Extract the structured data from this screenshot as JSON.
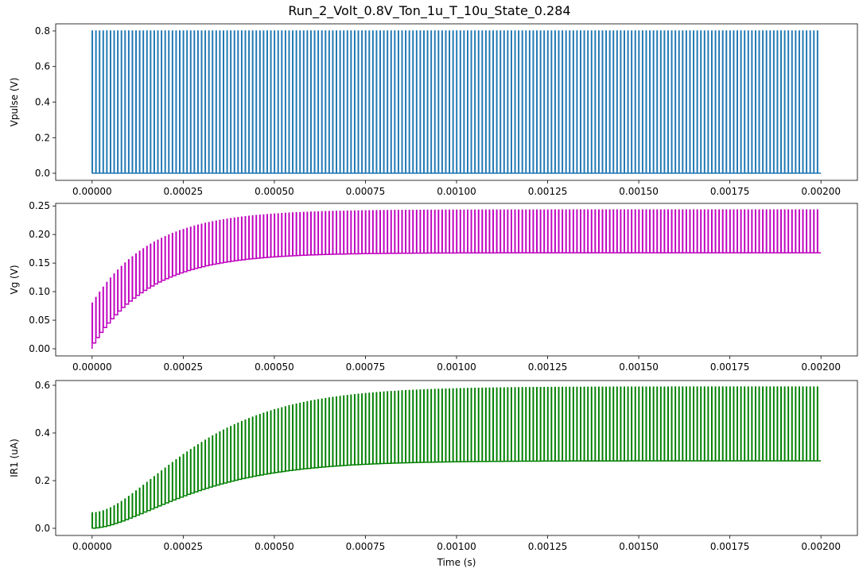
{
  "figure": {
    "title": "Run_2_Volt_0.8V_Ton_1u_T_10u_State_0.284"
  },
  "chart_data": [
    {
      "type": "line",
      "title": "",
      "xlabel": "",
      "ylabel": "Vpulse (V)",
      "color": "#1f77b4",
      "xlim": [
        -0.0001,
        0.0021
      ],
      "ylim": [
        -0.04,
        0.84
      ],
      "xticks": [
        0,
        0.00025,
        0.0005,
        0.00075,
        0.001,
        0.00125,
        0.0015,
        0.00175,
        0.002
      ],
      "xtick_labels": [
        "0.00000",
        "0.00025",
        "0.00050",
        "0.00075",
        "0.00100",
        "0.00125",
        "0.00150",
        "0.00175",
        "0.00200"
      ],
      "yticks": [
        0,
        0.2,
        0.4,
        0.6,
        0.8
      ],
      "ytick_labels": [
        "0.0",
        "0.2",
        "0.4",
        "0.6",
        "0.8"
      ],
      "series": [
        {
          "signal": "pulse",
          "period": 1e-05,
          "t_on": 1e-06,
          "t_end": 0.002,
          "low": 0,
          "high": 0.8
        }
      ]
    },
    {
      "type": "line",
      "title": "",
      "xlabel": "",
      "ylabel": "Vg (V)",
      "color": "#bf00bf",
      "xlim": [
        -0.0001,
        0.0021
      ],
      "ylim": [
        -0.0125,
        0.2545
      ],
      "xticks": [
        0,
        0.00025,
        0.0005,
        0.00075,
        0.001,
        0.00125,
        0.0015,
        0.00175,
        0.002
      ],
      "xtick_labels": [
        "0.00000",
        "0.00025",
        "0.00050",
        "0.00075",
        "0.00100",
        "0.00125",
        "0.00150",
        "0.00175",
        "0.00200"
      ],
      "yticks": [
        0,
        0.05,
        0.1,
        0.15,
        0.2,
        0.25
      ],
      "ytick_labels": [
        "0.00",
        "0.05",
        "0.10",
        "0.15",
        "0.20",
        "0.25"
      ],
      "series": [
        {
          "signal": "charging_pulse",
          "period": 1e-05,
          "t_on": 1e-06,
          "t_end": 0.002,
          "start_low": 0,
          "start_high": 0.08,
          "final_low": 0.168,
          "final_high": 0.243,
          "time_constant": 0.00016
        }
      ]
    },
    {
      "type": "line",
      "title": "",
      "xlabel": "Time (s)",
      "ylabel": "IR1 (uA)",
      "color": "#008000",
      "xlim": [
        -0.0001,
        0.0021
      ],
      "ylim": [
        -0.03,
        0.62
      ],
      "xticks": [
        0,
        0.00025,
        0.0005,
        0.00075,
        0.001,
        0.00125,
        0.0015,
        0.00175,
        0.002
      ],
      "xtick_labels": [
        "0.00000",
        "0.00025",
        "0.00050",
        "0.00075",
        "0.00100",
        "0.00125",
        "0.00150",
        "0.00175",
        "0.00200"
      ],
      "yticks": [
        0,
        0.2,
        0.4,
        0.6
      ],
      "ytick_labels": [
        "0.0",
        "0.2",
        "0.4",
        "0.6"
      ],
      "series": [
        {
          "signal": "sigmoid_pulse",
          "period": 1e-05,
          "t_on": 1e-06,
          "t_end": 0.002,
          "start_low": 0,
          "start_high": 0.065,
          "final_low": 0.283,
          "final_high": 0.593,
          "time_constant": 0.00016
        }
      ]
    }
  ]
}
